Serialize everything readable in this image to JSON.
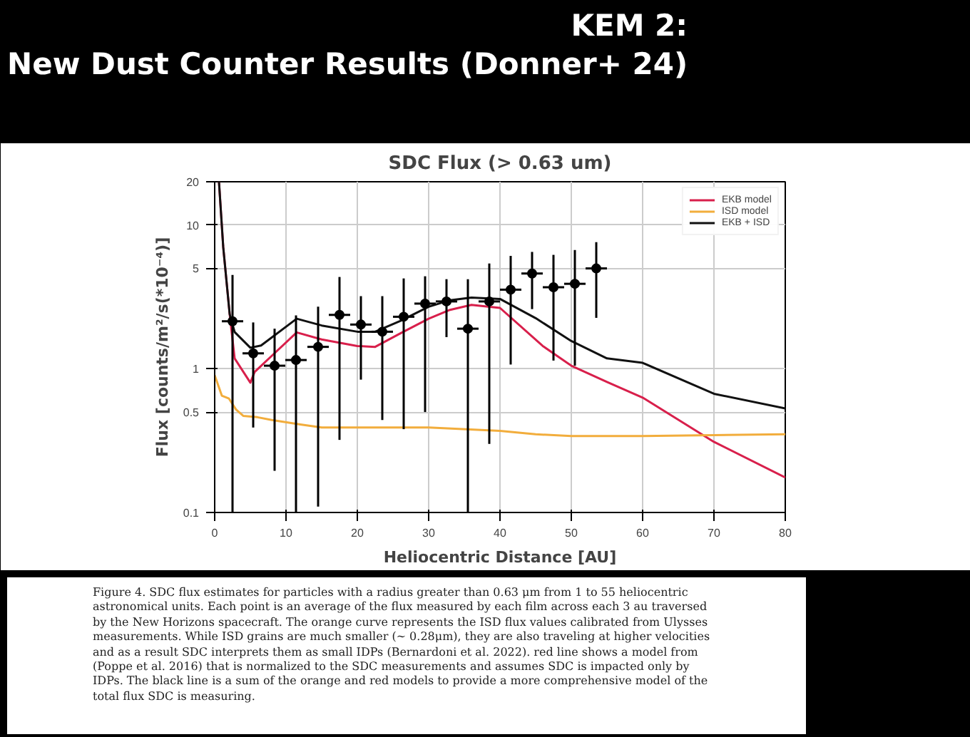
{
  "chart_data": {
    "type": "line",
    "title": "SDC Flux (> 0.63 um)",
    "xlabel": "Heliocentric Distance [AU]",
    "ylabel": "Flux [counts/m²/s(*10⁻⁴)]",
    "log": "y",
    "xlim": [
      0,
      80
    ],
    "ylim": [
      0.1,
      20
    ],
    "xticks": [
      0,
      10,
      20,
      30,
      40,
      50,
      60,
      70,
      80
    ],
    "yticks": [
      0.1,
      0.5,
      1,
      5,
      10,
      20
    ],
    "grid": true,
    "legend": "top right",
    "line_style": "solid",
    "series": [
      {
        "name": "EKB model",
        "color": "#d81f4b",
        "x": [
          0.6,
          1.2,
          2.1,
          2.8,
          5,
          5.6,
          8,
          11.5,
          15,
          20,
          22.5,
          26,
          30,
          33,
          36,
          40,
          46,
          50,
          55,
          60,
          70,
          80
        ],
        "values": [
          20,
          7,
          2.4,
          1.18,
          0.8,
          0.95,
          1.23,
          1.79,
          1.6,
          1.44,
          1.42,
          1.76,
          2.23,
          2.57,
          2.78,
          2.65,
          1.44,
          1.05,
          0.81,
          0.63,
          0.31,
          0.175
        ]
      },
      {
        "name": "ISD model",
        "color": "#f2ad3c",
        "x": [
          0,
          1,
          2,
          3,
          4,
          6,
          8,
          12,
          15,
          20,
          30,
          40,
          45,
          50,
          60,
          70,
          80
        ],
        "values": [
          0.9,
          0.65,
          0.62,
          0.52,
          0.47,
          0.46,
          0.44,
          0.41,
          0.39,
          0.39,
          0.39,
          0.37,
          0.35,
          0.34,
          0.34,
          0.345,
          0.35
        ]
      },
      {
        "name": "EKB + ISD",
        "color": "#111111",
        "x": [
          0.6,
          1.2,
          2.1,
          2.8,
          5,
          6.5,
          11.5,
          15,
          20,
          22.5,
          26,
          30,
          33,
          36,
          40,
          45,
          50,
          55,
          60,
          70,
          80
        ],
        "values": [
          20,
          7,
          2.4,
          1.8,
          1.4,
          1.45,
          2.23,
          2.0,
          1.81,
          1.81,
          2.15,
          2.7,
          3.0,
          3.13,
          3.06,
          2.25,
          1.56,
          1.18,
          1.1,
          0.67,
          0.53
        ]
      },
      {
        "type": "scatter",
        "color": "#000000",
        "marker": "circle",
        "x": [
          2.5,
          5.4,
          8.4,
          11.4,
          14.5,
          17.5,
          20.5,
          23.5,
          26.5,
          29.5,
          32.5,
          35.5,
          38.5,
          41.5,
          44.5,
          47.5,
          50.5,
          53.5
        ],
        "values": [
          2.14,
          1.28,
          1.05,
          1.15,
          1.42,
          2.37,
          2.03,
          1.81,
          2.3,
          2.84,
          2.94,
          1.9,
          2.94,
          3.55,
          4.6,
          3.69,
          3.9,
          4.99
        ],
        "errors": [
          [
            0.1,
            4.5
          ],
          [
            0.39,
            2.1
          ],
          [
            0.195,
            1.9
          ],
          [
            0.1,
            2.35
          ],
          [
            0.11,
            2.7
          ],
          [
            0.32,
            4.35
          ],
          [
            0.84,
            3.2
          ],
          [
            0.44,
            3.2
          ],
          [
            0.38,
            4.25
          ],
          [
            0.5,
            4.4
          ],
          [
            1.66,
            4.2
          ],
          [
            0.1,
            4.2
          ],
          [
            0.3,
            5.4
          ],
          [
            1.07,
            6.1
          ],
          [
            2.6,
            6.5
          ],
          [
            1.14,
            6.2
          ],
          [
            1.05,
            6.7
          ],
          [
            2.26,
            7.6
          ]
        ],
        "xerrors": [
          1.5,
          1.5,
          1.5,
          1.5,
          1.5,
          1.5,
          1.5,
          1.5,
          1.5,
          1.5,
          1.5,
          1.5,
          1.5,
          1.5,
          1.5,
          1.5,
          1.5,
          1.5
        ]
      }
    ],
    "annotations": [
      "KEM 2:\nNew Dust Counter Results (Donner+ 24)",
      "Figure 4. SDC flux estimates for particles with a radius greater than 0.63 μm from 1 to 55 heliocentric astronomical units. Each point is an average of the flux measured by each film across each 3 au traversed by the New Horizons spacecraft. The orange curve represents the ISD flux values calibrated from Ulysses measurements. While ISD grains are much smaller (∼ 0.28μm), they are also traveling at higher velocities and as a result SDC interprets them as small IDPs (Bernardoni et al. 2022). red line shows a model from (Poppe et al. 2016) that is normalized to the SDC measurements and assumes SDC is impacted only by IDPs. The black line is a sum of the orange and red models to provide a more comprehensive model of the total flux SDC is measuring."
    ]
  }
}
